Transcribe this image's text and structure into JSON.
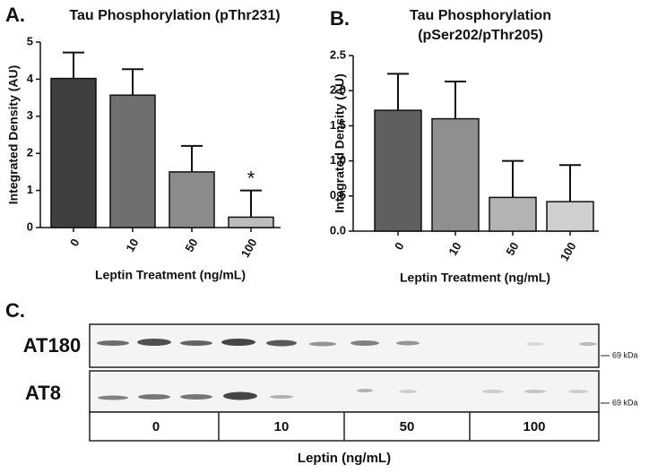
{
  "chart_data": [
    {
      "type": "bar",
      "panel_label": "A.",
      "title": "Tau Phosphorylation (pThr231)",
      "y_label": "Integrated Density (AU)",
      "x_label": "Leptin Treatment (ng/mL)",
      "categories": [
        "0",
        "10",
        "50",
        "100"
      ],
      "values": [
        4.02,
        3.57,
        1.5,
        0.28
      ],
      "errors": [
        0.7,
        0.7,
        0.7,
        0.72
      ],
      "significance": [
        null,
        null,
        null,
        "*"
      ],
      "colors": [
        "#3f3f3f",
        "#6f6f6f",
        "#8c8c8c",
        "#bdbdbd"
      ],
      "ylim": [
        0,
        5
      ],
      "yticks": [
        0,
        1,
        2,
        3,
        4,
        5
      ]
    },
    {
      "type": "bar",
      "panel_label": "B.",
      "title": [
        "Tau Phosphorylation",
        "(pSer202/pThr205)"
      ],
      "y_label": "Integrated Density (AU)",
      "x_label": "Leptin Treatment (ng/mL)",
      "categories": [
        "0",
        "10",
        "50",
        "100"
      ],
      "values": [
        1.72,
        1.6,
        0.48,
        0.42
      ],
      "errors": [
        0.52,
        0.53,
        0.52,
        0.52
      ],
      "colors": [
        "#5f5f5f",
        "#8f8f8f",
        "#b3b3b3",
        "#cfcfcf"
      ],
      "ylim": [
        0,
        2.5
      ],
      "yticks": [
        {
          "value": 0,
          "label": "0.0"
        },
        0.5,
        {
          "value": 1,
          "label": "1.0"
        },
        1.5,
        {
          "value": 2,
          "label": "2.0"
        },
        2.5
      ]
    }
  ],
  "blot": {
    "panel_label": "C.",
    "rows": [
      {
        "label": "AT180",
        "marker": "69 kDa"
      },
      {
        "label": "AT8",
        "marker": "69 kDa"
      }
    ],
    "groups": [
      "0",
      "10",
      "50",
      "100"
    ],
    "x_label": "Leptin (ng/mL)"
  }
}
